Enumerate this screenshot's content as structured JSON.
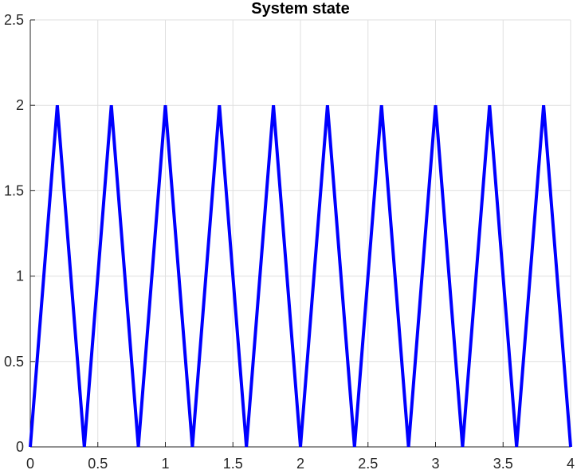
{
  "chart_data": {
    "type": "line",
    "title": "System state",
    "xlabel": "",
    "ylabel": "",
    "xlim": [
      0,
      4
    ],
    "ylim": [
      0,
      2.5
    ],
    "x_ticks": [
      0,
      0.5,
      1,
      1.5,
      2,
      2.5,
      3,
      3.5,
      4
    ],
    "x_tick_labels": [
      "0",
      "0.5",
      "1",
      "1.5",
      "2",
      "2.5",
      "3",
      "3.5",
      "4"
    ],
    "y_ticks": [
      0,
      0.5,
      1,
      1.5,
      2,
      2.5
    ],
    "y_tick_labels": [
      "0",
      "0.5",
      "1",
      "1.5",
      "2",
      "2.5"
    ],
    "grid": true,
    "legend": null,
    "series": [
      {
        "color": "#0000ff",
        "x": [
          0,
          0.2,
          0.4,
          0.6,
          0.8,
          1.0,
          1.2,
          1.4,
          1.6,
          1.8,
          2.0,
          2.2,
          2.4,
          2.6,
          2.8,
          3.0,
          3.2,
          3.4,
          3.6,
          3.8,
          4.0
        ],
        "y": [
          0,
          2,
          0,
          2,
          0,
          2,
          0,
          2,
          0,
          2,
          0,
          2,
          0,
          2,
          0,
          2,
          0,
          2,
          0,
          2,
          0
        ]
      }
    ]
  }
}
